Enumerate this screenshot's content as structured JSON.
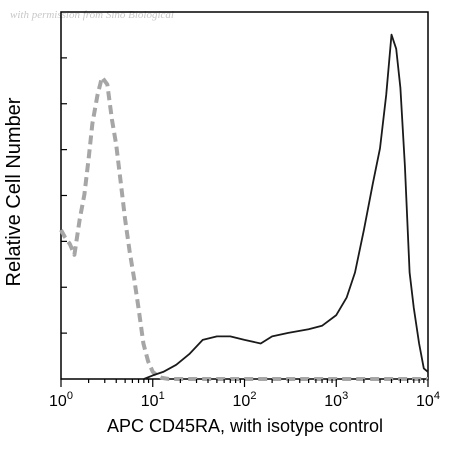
{
  "watermark": "with permission from Sino Biological",
  "chart_data": {
    "type": "line",
    "xlabel": "APC CD45RA, with isotype control",
    "ylabel": "Relative Cell Number",
    "xscale": "log",
    "xlim": [
      1,
      10000
    ],
    "ylim": [
      0,
      1
    ],
    "x_ticks": [
      {
        "value": 1,
        "base": "10",
        "exp": "0"
      },
      {
        "value": 10,
        "base": "10",
        "exp": "1"
      },
      {
        "value": 100,
        "base": "10",
        "exp": "2"
      },
      {
        "value": 1000,
        "base": "10",
        "exp": "3"
      },
      {
        "value": 10000,
        "base": "10",
        "exp": "4"
      }
    ],
    "series": [
      {
        "style": "dashed",
        "color": "#a6a6a6",
        "x": [
          1,
          1.1,
          1.25,
          1.4,
          1.6,
          1.8,
          2.0,
          2.2,
          2.5,
          2.8,
          3.2,
          3.6,
          4.0,
          4.5,
          5.0,
          5.6,
          6.3,
          7.0,
          7.9,
          8.9,
          10,
          11.2,
          12.6,
          15,
          20,
          50,
          100,
          1000,
          10000
        ],
        "y": [
          0.42,
          0.4,
          0.38,
          0.35,
          0.45,
          0.52,
          0.62,
          0.72,
          0.8,
          0.85,
          0.83,
          0.73,
          0.66,
          0.55,
          0.45,
          0.36,
          0.28,
          0.2,
          0.1,
          0.05,
          0.02,
          0.01,
          0.003,
          0,
          0,
          0,
          0,
          0,
          0
        ]
      },
      {
        "style": "solid",
        "color": "#1a1a1a",
        "x": [
          8,
          10,
          13,
          18,
          25,
          35,
          50,
          70,
          100,
          150,
          200,
          300,
          500,
          700,
          1000,
          1300,
          1600,
          2000,
          2500,
          3000,
          3500,
          4000,
          4500,
          5000,
          5600,
          6300,
          7000,
          8000,
          9000,
          10000
        ],
        "y": [
          0,
          0.01,
          0.02,
          0.04,
          0.07,
          0.11,
          0.12,
          0.12,
          0.11,
          0.1,
          0.12,
          0.13,
          0.14,
          0.15,
          0.18,
          0.23,
          0.3,
          0.42,
          0.55,
          0.65,
          0.8,
          0.97,
          0.93,
          0.82,
          0.6,
          0.3,
          0.2,
          0.1,
          0.03,
          0.02
        ]
      }
    ]
  }
}
